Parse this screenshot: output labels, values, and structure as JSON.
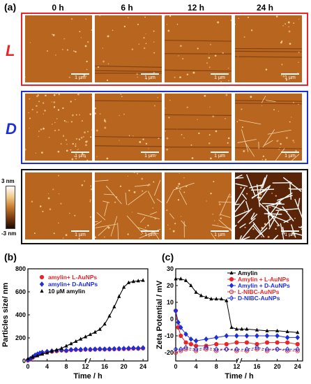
{
  "panel_a": {
    "letter": "(a)",
    "column_headers": [
      "0 h",
      "6 h",
      "12 h",
      "24 h"
    ],
    "rows": [
      {
        "label": "L",
        "color": "#e8262a",
        "frame_color": "#e8262a"
      },
      {
        "label": "D",
        "color": "#1f2fd6",
        "frame_color": "#1f2fd6"
      },
      {
        "label": "",
        "color": "#000000",
        "frame_color": "#111111"
      }
    ],
    "scale_text": "1 µm",
    "colorbar": {
      "top": "3 nm",
      "bottom": "-3 nm"
    }
  },
  "panel_b": {
    "letter": "(b)"
  },
  "panel_c": {
    "letter": "(c)"
  },
  "chart_data": [
    {
      "type": "scatter",
      "xlabel": "Time / h",
      "ylabel": "Particles size/ nm",
      "xlim": [
        0,
        25
      ],
      "ylim": [
        0,
        800
      ],
      "xticks": [
        "0",
        "4",
        "8",
        "12",
        "16",
        "20",
        "24"
      ],
      "yticks": [
        "0",
        "200",
        "400",
        "600",
        "800"
      ],
      "legend_position": "top-left",
      "series": [
        {
          "name": "amylin+ L-AuNPs",
          "color": "#e8262a",
          "marker": "circle",
          "x": [
            0,
            0.5,
            1,
            1.5,
            2,
            2.5,
            3,
            4,
            5,
            6,
            7,
            8,
            9,
            10,
            11,
            12,
            13,
            14,
            15,
            16,
            17,
            18,
            19,
            20,
            21,
            22,
            23,
            24
          ],
          "y": [
            5,
            15,
            30,
            45,
            55,
            62,
            70,
            78,
            82,
            86,
            92,
            88,
            95,
            98,
            96,
            100,
            98,
            100,
            102,
            101,
            102,
            103,
            104,
            105,
            106,
            108,
            107,
            110
          ]
        },
        {
          "name": "amylin+ D-AuNPs",
          "color": "#1f2fd6",
          "marker": "diamond",
          "x": [
            0,
            0.5,
            1,
            1.5,
            2,
            2.5,
            3,
            4,
            5,
            6,
            7,
            8,
            9,
            10,
            11,
            12,
            13,
            14,
            15,
            16,
            17,
            18,
            19,
            20,
            21,
            22,
            23,
            24
          ],
          "y": [
            8,
            20,
            35,
            50,
            60,
            68,
            75,
            82,
            86,
            90,
            95,
            92,
            98,
            100,
            99,
            102,
            100,
            103,
            104,
            103,
            104,
            106,
            107,
            108,
            110,
            112,
            111,
            114
          ]
        },
        {
          "name": "10 µM amylin",
          "color": "#000000",
          "marker": "triangle",
          "x": [
            0,
            1,
            2,
            3,
            4,
            5,
            6,
            7,
            8,
            9,
            10,
            11,
            12,
            13,
            14,
            15,
            16,
            17,
            18,
            19,
            20,
            21,
            22,
            23,
            24
          ],
          "y": [
            20,
            35,
            45,
            60,
            70,
            85,
            95,
            110,
            130,
            150,
            170,
            190,
            210,
            230,
            250,
            275,
            320,
            390,
            470,
            560,
            640,
            680,
            690,
            695,
            700
          ]
        }
      ]
    },
    {
      "type": "line",
      "xlabel": "Time / h",
      "ylabel": "Zeta Potential / mV",
      "xlim": [
        0,
        25
      ],
      "ylim": [
        -25,
        30
      ],
      "xticks": [
        "0",
        "4",
        "8",
        "12",
        "16",
        "20",
        "24"
      ],
      "yticks": [
        "-20",
        "-10",
        "0",
        "10",
        "20",
        "30"
      ],
      "legend_position": "top-right",
      "series": [
        {
          "name": "Amylin",
          "color": "#000000",
          "marker": "triangle",
          "dashed": false,
          "x": [
            0,
            1,
            2,
            3,
            4,
            5,
            6,
            7,
            8,
            9,
            10,
            11,
            12,
            13,
            14,
            16,
            18,
            20,
            22,
            24
          ],
          "y": [
            24,
            24,
            23,
            20,
            16,
            14,
            13,
            12,
            12,
            12,
            11,
            -5,
            -6,
            -6,
            -6,
            -6.5,
            -7,
            -7,
            -7.5,
            -8
          ]
        },
        {
          "name": "Amylin + L-AuNPs",
          "color": "#e8262a",
          "marker": "circle",
          "dashed": false,
          "x": [
            0,
            0.5,
            1,
            2,
            3,
            4,
            6,
            8,
            10,
            12,
            14,
            16,
            18,
            20,
            22,
            24
          ],
          "y": [
            5,
            -5,
            -10,
            -14,
            -15,
            -16,
            -16,
            -15,
            -15,
            -14,
            -14,
            -15,
            -14,
            -14,
            -14,
            -15
          ]
        },
        {
          "name": "Amylin + D-AuNPs",
          "color": "#1f2fd6",
          "marker": "diamond",
          "dashed": false,
          "x": [
            0,
            0.5,
            1,
            2,
            3,
            4,
            6,
            8,
            10,
            12,
            14,
            16,
            18,
            20,
            22,
            24
          ],
          "y": [
            5,
            -2,
            -5,
            -9,
            -12,
            -13,
            -12,
            -11,
            -10,
            -10,
            -10,
            -10,
            -10,
            -10,
            -11,
            -11
          ]
        },
        {
          "name": "L-NIBC-AuNPs",
          "color": "#e8262a",
          "marker": "circle-open",
          "dashed": true,
          "x": [
            0,
            1,
            2,
            4,
            6,
            8,
            10,
            12,
            14,
            16,
            18,
            20,
            22,
            24
          ],
          "y": [
            -20,
            -19,
            -18,
            -19,
            -18,
            -19,
            -18,
            -19,
            -19,
            -18,
            -19,
            -18,
            -19,
            -19
          ]
        },
        {
          "name": "D-NIBC-AuNPs",
          "color": "#1f2fd6",
          "marker": "diamond-open",
          "dashed": true,
          "x": [
            0,
            1,
            2,
            4,
            6,
            8,
            10,
            12,
            14,
            16,
            18,
            20,
            22,
            24
          ],
          "y": [
            -18,
            -18,
            -17,
            -18,
            -17,
            -18,
            -18,
            -18,
            -18,
            -17,
            -18,
            -18,
            -18,
            -18
          ]
        }
      ]
    }
  ]
}
